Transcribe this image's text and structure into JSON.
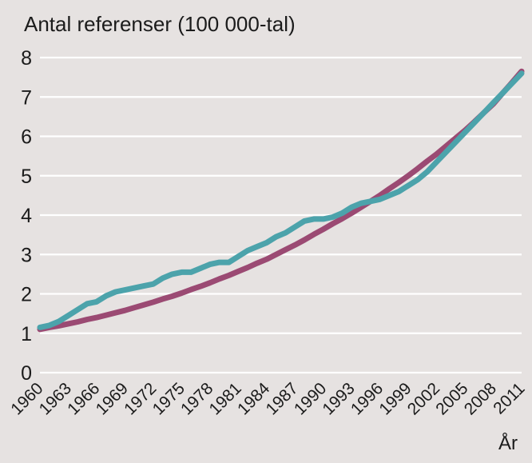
{
  "chart_data": {
    "type": "line",
    "title": "Antal referenser (100 000-tal)",
    "xlabel": "År",
    "ylabel": "",
    "ylim": [
      0,
      8
    ],
    "xlim": [
      1960,
      2011
    ],
    "y_ticks": [
      0,
      1,
      2,
      3,
      4,
      5,
      6,
      7,
      8
    ],
    "x_tick_labels": [
      "1960",
      "1963",
      "1966",
      "1969",
      "1972",
      "1975",
      "1978",
      "1981",
      "1984",
      "1987",
      "1990",
      "1993",
      "1996",
      "1999",
      "2002",
      "2005",
      "2008",
      "2011"
    ],
    "grid": "horizontal",
    "legend_position": "none",
    "background_color": "#e6e2e1",
    "gridline_color": "#ffffff",
    "text_color": "#1b1b1b",
    "x": [
      1960,
      1961,
      1962,
      1963,
      1964,
      1965,
      1966,
      1967,
      1968,
      1969,
      1970,
      1971,
      1972,
      1973,
      1974,
      1975,
      1976,
      1977,
      1978,
      1979,
      1980,
      1981,
      1982,
      1983,
      1984,
      1985,
      1986,
      1987,
      1988,
      1989,
      1990,
      1991,
      1992,
      1993,
      1994,
      1995,
      1996,
      1997,
      1998,
      1999,
      2000,
      2001,
      2002,
      2003,
      2004,
      2005,
      2006,
      2007,
      2008,
      2009,
      2010,
      2011
    ],
    "series": [
      {
        "name": "smooth-trend-line",
        "color": "#9b4a73",
        "values": [
          1.1,
          1.15,
          1.19,
          1.24,
          1.29,
          1.35,
          1.4,
          1.46,
          1.52,
          1.58,
          1.65,
          1.72,
          1.79,
          1.87,
          1.94,
          2.02,
          2.11,
          2.19,
          2.28,
          2.38,
          2.47,
          2.57,
          2.67,
          2.78,
          2.88,
          3.0,
          3.12,
          3.24,
          3.37,
          3.51,
          3.64,
          3.78,
          3.91,
          4.05,
          4.2,
          4.35,
          4.5,
          4.67,
          4.83,
          5.0,
          5.18,
          5.37,
          5.55,
          5.75,
          5.95,
          6.15,
          6.37,
          6.6,
          6.82,
          7.1,
          7.37,
          7.65
        ]
      },
      {
        "name": "annual-data-line",
        "color": "#4ca3ab",
        "values": [
          1.15,
          1.2,
          1.3,
          1.45,
          1.6,
          1.75,
          1.8,
          1.95,
          2.05,
          2.1,
          2.15,
          2.2,
          2.25,
          2.4,
          2.5,
          2.55,
          2.55,
          2.65,
          2.75,
          2.8,
          2.8,
          2.95,
          3.1,
          3.2,
          3.3,
          3.45,
          3.55,
          3.7,
          3.85,
          3.9,
          3.9,
          3.95,
          4.05,
          4.2,
          4.3,
          4.35,
          4.4,
          4.5,
          4.6,
          4.75,
          4.9,
          5.1,
          5.35,
          5.6,
          5.85,
          6.1,
          6.35,
          6.6,
          6.85,
          7.1,
          7.35,
          7.6
        ]
      }
    ]
  }
}
